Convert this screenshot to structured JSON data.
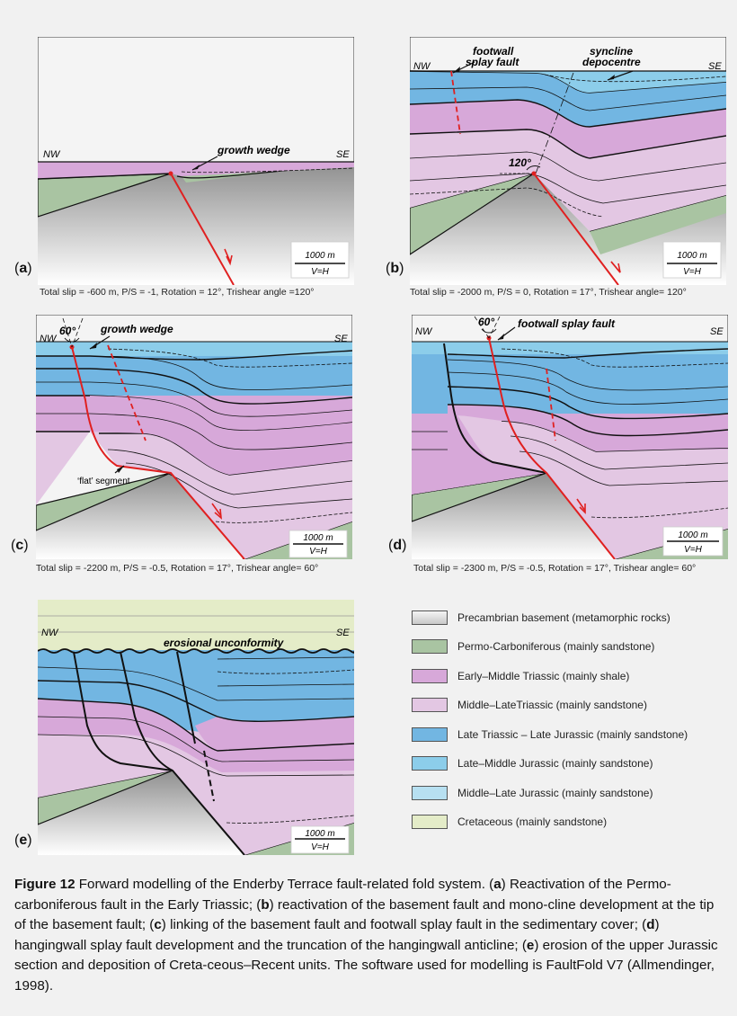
{
  "panels": {
    "a": {
      "label_open": "(",
      "letter": "a",
      "label_close": ")",
      "nw": "NW",
      "se": "SE",
      "annotation": "growth wedge",
      "scale": "1000 m",
      "vh": "V=H",
      "caption": "Total slip = -600 m, P/S = -1, Rotation = 12°, Trishear angle =120°"
    },
    "b": {
      "label_open": "(",
      "letter": "b",
      "label_close": ")",
      "nw": "NW",
      "se": "SE",
      "annotation1": "footwall",
      "annotation2": "splay fault",
      "annotation3": "syncline",
      "annotation4": "depocentre",
      "angle": "120°",
      "scale": "1000 m",
      "vh": "V=H",
      "caption": "Total slip = -2000 m, P/S = 0, Rotation = 17°, Trishear angle= 120°"
    },
    "c": {
      "label_open": "(",
      "letter": "c",
      "label_close": ")",
      "nw": "NW",
      "se": "SE",
      "annotation": "growth wedge",
      "angle": "60°",
      "flat": "‘flat’ segment",
      "scale": "1000 m",
      "vh": "V=H",
      "caption": "Total slip = -2200 m, P/S = -0.5, Rotation = 17°, Trishear angle= 60°"
    },
    "d": {
      "label_open": "(",
      "letter": "d",
      "label_close": ")",
      "nw": "NW",
      "se": "SE",
      "annotation": "footwall splay fault",
      "angle": "60°",
      "scale": "1000 m",
      "vh": "V=H",
      "caption": "Total slip = -2300 m, P/S = -0.5, Rotation = 17°, Trishear angle= 60°"
    },
    "e": {
      "label_open": "(",
      "letter": "e",
      "label_close": ")",
      "nw": "NW",
      "se": "SE",
      "annotation": "erosional unconformity",
      "scale": "1000 m",
      "vh": "V=H"
    }
  },
  "legend": [
    {
      "label": "Precambrian basement (metamorphic rocks)",
      "color": "#d8d8d8"
    },
    {
      "label": "Permo-Carboniferous (mainly sandstone)",
      "color": "#a9c4a2"
    },
    {
      "label": "Early–Middle Triassic (mainly shale)",
      "color": "#d7a8d9"
    },
    {
      "label": "Middle–LateTriassic (mainly sandstone)",
      "color": "#e3c7e3"
    },
    {
      "label": "Late Triassic – Late Jurassic (mainly sandstone)",
      "color": "#72b6e2"
    },
    {
      "label": "Late–Middle Jurassic (mainly sandstone)",
      "color": "#8ccdea"
    },
    {
      "label": "Middle–Late Jurassic (mainly sandstone)",
      "color": "#b7e0f1"
    },
    {
      "label": "Cretaceous (mainly sandstone)",
      "color": "#e4ecc8"
    }
  ],
  "figure_caption": {
    "prefix": "Figure 12",
    "t1": " Forward modelling of the Enderby Terrace fault-related fold system. (",
    "a": "a",
    "t2": ") Reactivation of the Permo-carboniferous fault in the Early Triassic; (",
    "b": "b",
    "t3": ") reactivation of the basement fault and mono-cline development at the tip of the basement fault; (",
    "c": "c",
    "t4": ") linking of the basement fault and footwall splay fault in the sedimentary cover; (",
    "d": "d",
    "t5": ") hangingwall splay fault development and the truncation of the hangingwall anticline; (",
    "e": "e",
    "t6": ") erosion of the upper Jurassic section and deposition of Creta-ceous–Recent units. The software used for modelling is FaultFold V7 (Allmendinger, 1998)."
  }
}
